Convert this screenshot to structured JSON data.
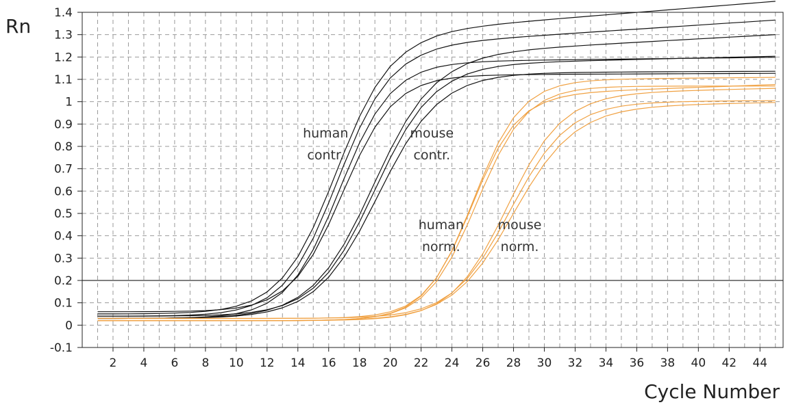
{
  "chart_data": {
    "type": "line",
    "title": "",
    "xlabel": "Cycle Number",
    "ylabel": "Rn",
    "xlim": [
      0,
      45.5
    ],
    "ylim": [
      -0.1,
      1.4
    ],
    "grid": true,
    "x_ticks": [
      2,
      4,
      6,
      8,
      10,
      12,
      14,
      16,
      18,
      20,
      22,
      24,
      26,
      28,
      30,
      32,
      34,
      36,
      38,
      40,
      42,
      44
    ],
    "y_ticks": [
      -0.1,
      0,
      0.1,
      0.2,
      0.3,
      0.4,
      0.5,
      0.6,
      0.7,
      0.8,
      0.9,
      1,
      1.1,
      1.2,
      1.3,
      1.4
    ],
    "y_tick_labels": [
      "-0.1",
      "0",
      "0.1",
      "0.2",
      "0.3",
      "0.4",
      "0.5",
      "0.6",
      "0.7",
      "0.8",
      "0.9",
      "1",
      "1.1",
      "1.2",
      "1.3",
      "1.4"
    ],
    "threshold": 0.2,
    "colors": {
      "control": "#111111",
      "normalized": "#f0a040",
      "threshold": "#333333",
      "grid": "#999999",
      "axis": "#222222"
    },
    "annotations": [
      {
        "lines": [
          "human",
          "contr."
        ],
        "x": 15.8,
        "y": 0.84
      },
      {
        "lines": [
          "mouse",
          "contr."
        ],
        "x": 22.7,
        "y": 0.84
      },
      {
        "lines": [
          "human",
          "norm."
        ],
        "x": 23.3,
        "y": 0.43
      },
      {
        "lines": [
          "mouse",
          "norm."
        ],
        "x": 28.4,
        "y": 0.43
      }
    ],
    "series": [
      {
        "group": "control",
        "L": 0.05,
        "U": 1.32,
        "x0": 16.5,
        "k": 0.55,
        "d": 0.0055
      },
      {
        "group": "control",
        "L": 0.04,
        "U": 1.26,
        "x0": 16.6,
        "k": 0.57,
        "d": 0.0045
      },
      {
        "group": "control",
        "L": 0.03,
        "U": 1.18,
        "x0": 16.7,
        "k": 0.59,
        "d": 0.0008
      },
      {
        "group": "control",
        "L": 0.06,
        "U": 1.12,
        "x0": 16.9,
        "k": 0.6,
        "d": 0.0003
      },
      {
        "group": "control",
        "L": 0.03,
        "U": 1.22,
        "x0": 18.9,
        "k": 0.5,
        "d": 0.0038
      },
      {
        "group": "control",
        "L": 0.04,
        "U": 1.17,
        "x0": 19.0,
        "k": 0.52,
        "d": 0.0016
      },
      {
        "group": "control",
        "L": 0.03,
        "U": 1.13,
        "x0": 19.2,
        "k": 0.5,
        "d": 0.0003
      },
      {
        "group": "normalized",
        "L": 0.03,
        "U": 1.04,
        "x0": 25.3,
        "k": 0.66,
        "d": 0.0025
      },
      {
        "group": "normalized",
        "L": 0.02,
        "U": 1.1,
        "x0": 25.4,
        "k": 0.64,
        "d": 0.0006
      },
      {
        "group": "normalized",
        "L": 0.02,
        "U": 1.07,
        "x0": 25.6,
        "k": 0.62,
        "d": 0.0
      },
      {
        "group": "normalized",
        "L": 0.02,
        "U": 1.04,
        "x0": 27.6,
        "k": 0.55,
        "d": 0.0016
      },
      {
        "group": "normalized",
        "L": 0.03,
        "U": 1.0,
        "x0": 27.8,
        "k": 0.53,
        "d": 0.0004
      },
      {
        "group": "normalized",
        "L": 0.02,
        "U": 0.98,
        "x0": 28.0,
        "k": 0.5,
        "d": 0.0014
      }
    ],
    "cycles": [
      1,
      45
    ]
  }
}
